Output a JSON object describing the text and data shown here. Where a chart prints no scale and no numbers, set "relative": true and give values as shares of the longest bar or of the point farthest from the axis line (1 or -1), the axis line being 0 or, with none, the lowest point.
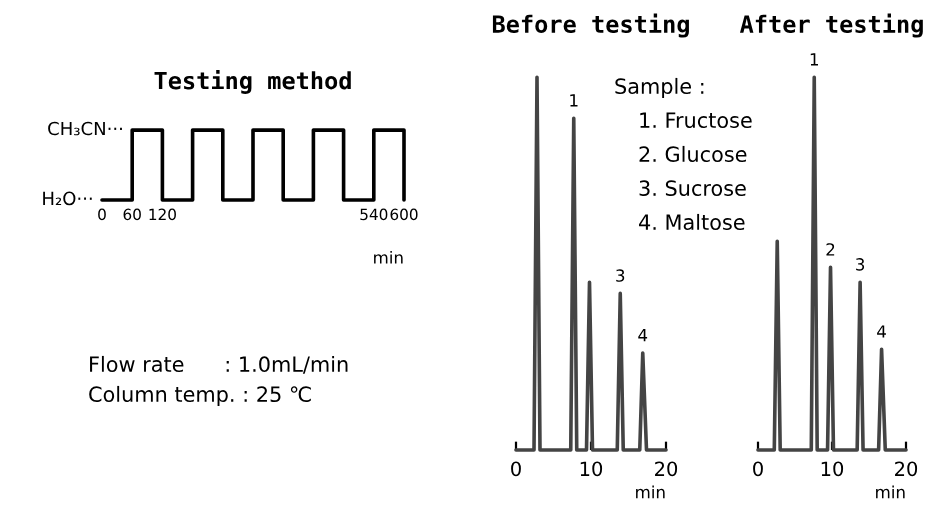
{
  "chart_data": [
    {
      "type": "step",
      "title": "Testing method",
      "xlabel": "min",
      "x": [
        0,
        60,
        120,
        180,
        240,
        300,
        360,
        420,
        480,
        540,
        600
      ],
      "series": [
        {
          "color": "#000000",
          "values": [
            0,
            1,
            0,
            1,
            0,
            1,
            0,
            1,
            0,
            1,
            0
          ]
        }
      ],
      "xlim": [
        0,
        600
      ],
      "xticks": [
        0,
        60,
        120,
        540,
        600
      ],
      "relative": true,
      "annotations": [
        "Flow rate      : 1.0mL/min",
        "Column temp. : 25 ℃",
        {
          "text": "CH₃CN···",
          "x": 60,
          "y": 1
        },
        {
          "text": "H₂O···",
          "x": 0,
          "y": 0
        }
      ]
    },
    {
      "type": "line",
      "title": "Before testing",
      "xlabel": "min",
      "relative": true,
      "x": [
        0,
        2.4,
        2.8,
        3.2,
        7.3,
        7.7,
        8.1,
        9.4,
        9.8,
        10.2,
        13.5,
        13.9,
        14.3,
        16.5,
        16.9,
        17.4,
        20
      ],
      "series": [
        {
          "color": "#444444",
          "values": [
            0,
            0,
            1,
            0,
            0,
            0.89,
            0,
            0,
            0.45,
            0,
            0,
            0.42,
            0,
            0,
            0.26,
            0,
            0
          ]
        }
      ],
      "xlim": [
        0,
        20
      ],
      "xticks": [
        0,
        10,
        20
      ],
      "annotations": [
        "Sample :",
        "1. Fructose",
        "2. Glucose",
        "3. Sucrose",
        "4. Maltose",
        {
          "text": "1",
          "x": 7.7,
          "y": 0.89
        },
        {
          "text": "3",
          "x": 13.9,
          "y": 0.42
        },
        {
          "text": "4",
          "x": 16.9,
          "y": 0.26
        }
      ]
    },
    {
      "type": "line",
      "title": "After testing",
      "xlabel": "min",
      "relative": true,
      "x": [
        0,
        2.2,
        2.6,
        3.0,
        7.2,
        7.6,
        8.0,
        9.4,
        9.8,
        10.2,
        13.4,
        13.8,
        14.2,
        16.3,
        16.7,
        17.2,
        20
      ],
      "series": [
        {
          "color": "#444444",
          "values": [
            0,
            0,
            0.56,
            0,
            0,
            1,
            0,
            0,
            0.49,
            0,
            0,
            0.45,
            0,
            0,
            0.27,
            0,
            0
          ]
        }
      ],
      "xlim": [
        0,
        20
      ],
      "xticks": [
        0,
        10,
        20
      ],
      "annotations": [
        {
          "text": "1",
          "x": 7.6,
          "y": 1
        },
        {
          "text": "2",
          "x": 9.8,
          "y": 0.49
        },
        {
          "text": "3",
          "x": 13.8,
          "y": 0.45
        },
        {
          "text": "4",
          "x": 16.7,
          "y": 0.27
        }
      ]
    }
  ]
}
